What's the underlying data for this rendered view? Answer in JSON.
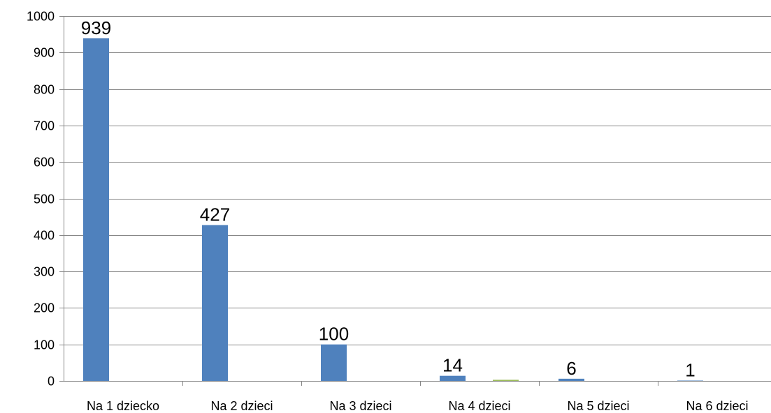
{
  "chart_data": {
    "type": "bar",
    "title": "",
    "xlabel": "",
    "ylabel": "",
    "ylim": [
      0,
      1000
    ],
    "yticks": [
      0,
      100,
      200,
      300,
      400,
      500,
      600,
      700,
      800,
      900,
      1000
    ],
    "grid": true,
    "legend": "none",
    "categories": [
      "Na 1 dziecko",
      "Na 2 dzieci",
      "Na 3 dzieci",
      "Na 4 dzieci",
      "Na 5 dzieci",
      "Na 6 dzieci"
    ],
    "series": [
      {
        "values": [
          939,
          427,
          100,
          14,
          6,
          1
        ],
        "color": "#4f81bd",
        "labels": [
          "939",
          "427",
          "100",
          "14",
          "6",
          "1"
        ]
      },
      {
        "values": [
          0,
          0,
          0,
          3,
          0,
          0
        ],
        "color": "#9bbb59"
      }
    ],
    "colors": {
      "grid": "#868686",
      "axis": "#868686"
    }
  }
}
